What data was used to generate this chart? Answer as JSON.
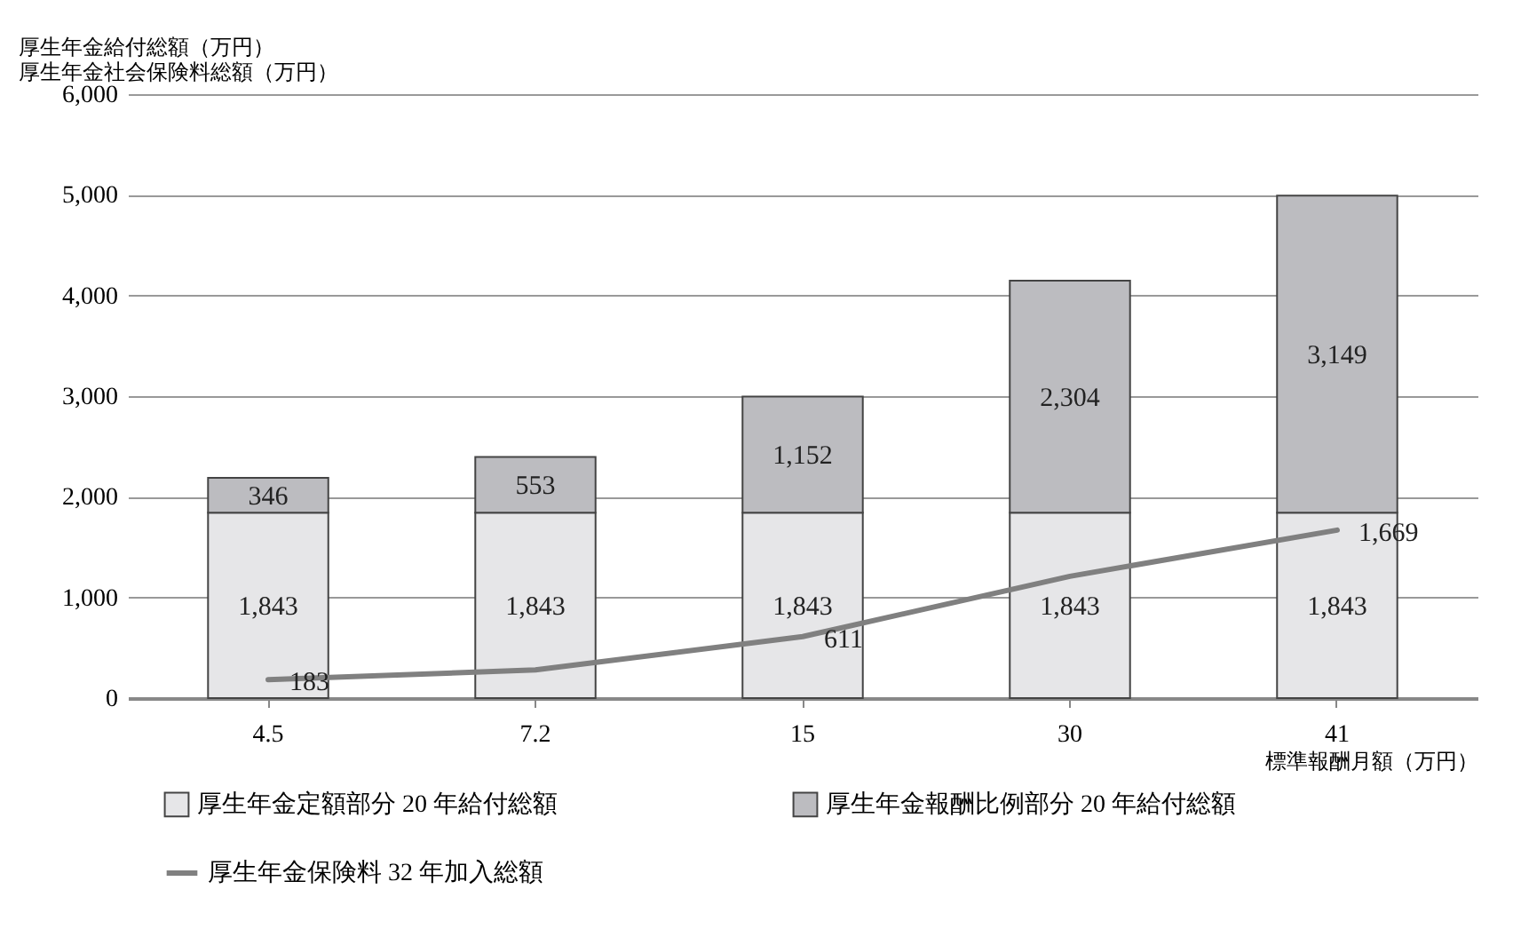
{
  "chart_data": {
    "type": "bar",
    "stacked": true,
    "ylabel": "厚生年金給付総額（万円）",
    "annotations": [
      "厚生年金社会保険料総額（万円）"
    ],
    "xlabel": "標準報酬月額（万円）",
    "categories": [
      "4.5",
      "7.2",
      "15",
      "30",
      "41"
    ],
    "series": [
      {
        "name": "厚生年金定額部分 20 年給付総額",
        "color": "#e6e6e8",
        "values": [
          1843,
          1843,
          1843,
          1843,
          1843
        ],
        "value_labels": [
          "1,843",
          "1,843",
          "1,843",
          "1,843",
          "1,843"
        ]
      },
      {
        "name": "厚生年金報酬比例部分 20 年給付総額",
        "color": "#bcbcc0",
        "values": [
          346,
          553,
          1152,
          2304,
          3149
        ],
        "value_labels": [
          "346",
          "553",
          "1,152",
          "2,304",
          "3,149"
        ]
      },
      {
        "name": "厚生年金保険料 32 年加入総額",
        "type": "line",
        "color": "#808080",
        "values": [
          183,
          280,
          611,
          1210,
          1669
        ],
        "value_labels": [
          "183",
          null,
          "611",
          null,
          "1,669"
        ]
      }
    ],
    "ylim": [
      0,
      6000
    ],
    "yticks": [
      0,
      {
        "value": 1000,
        "label": "1,000"
      },
      {
        "value": 2000,
        "label": "2,000"
      },
      {
        "value": 3000,
        "label": "3,000"
      },
      {
        "value": 4000,
        "label": "4,000"
      },
      {
        "value": 5000,
        "label": "5,000"
      },
      {
        "value": 6000,
        "label": "6,000"
      }
    ],
    "grid": "y",
    "legend": "bottom"
  }
}
